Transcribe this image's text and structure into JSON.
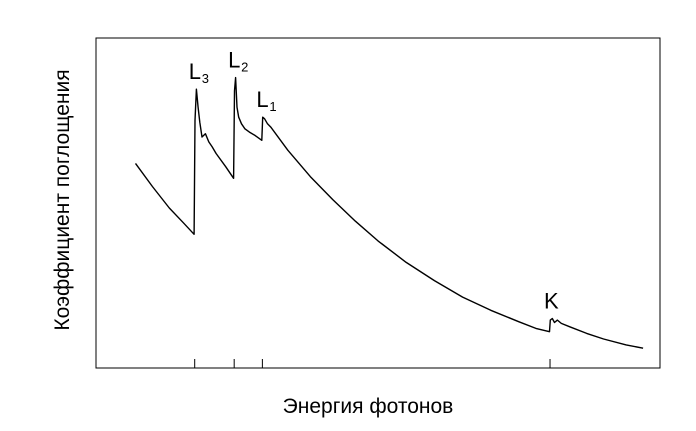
{
  "chart_data": {
    "type": "line",
    "xlabel": "Энергия фотонов",
    "ylabel": "Коэффициент поглощения",
    "xlim": [
      0,
      100
    ],
    "ylim": [
      0,
      100
    ],
    "grid": false,
    "x_ticks": [
      17.5,
      24.5,
      29.5,
      80.5
    ],
    "edges": [
      {
        "main": "L",
        "sub": "3",
        "x": 17.5
      },
      {
        "main": "L",
        "sub": "2",
        "x": 24.5
      },
      {
        "main": "L",
        "sub": "1",
        "x": 29.5
      },
      {
        "main": "K",
        "sub": "",
        "x": 80.5
      }
    ],
    "series": [
      {
        "values": [
          [
            7,
            62
          ],
          [
            10,
            55
          ],
          [
            13,
            48.5
          ],
          [
            15.5,
            44
          ],
          [
            17.4,
            40.5
          ],
          [
            17.55,
            75
          ],
          [
            17.8,
            84.5
          ],
          [
            18.1,
            79
          ],
          [
            18.4,
            74.5
          ],
          [
            18.8,
            70
          ],
          [
            19.4,
            71
          ],
          [
            20,
            68.5
          ],
          [
            20.6,
            67
          ],
          [
            21.3,
            65
          ],
          [
            23,
            61
          ],
          [
            24.4,
            57.5
          ],
          [
            24.55,
            84
          ],
          [
            24.75,
            88
          ],
          [
            25,
            79
          ],
          [
            25.3,
            76
          ],
          [
            25.8,
            74
          ],
          [
            26.4,
            72.5
          ],
          [
            27.2,
            71.5
          ],
          [
            28.2,
            70.5
          ],
          [
            29.4,
            69
          ],
          [
            29.55,
            76
          ],
          [
            29.9,
            75.5
          ],
          [
            30.4,
            74
          ],
          [
            31,
            73
          ],
          [
            34,
            66
          ],
          [
            38,
            58
          ],
          [
            42,
            51
          ],
          [
            46,
            44.5
          ],
          [
            50,
            38.5
          ],
          [
            55,
            32
          ],
          [
            60,
            26.5
          ],
          [
            65,
            21.5
          ],
          [
            70,
            17.5
          ],
          [
            75,
            14
          ],
          [
            78,
            12
          ],
          [
            80.4,
            11
          ],
          [
            80.55,
            14.5
          ],
          [
            80.9,
            15
          ],
          [
            81.3,
            13.8
          ],
          [
            81.8,
            14.5
          ],
          [
            82.5,
            13.5
          ],
          [
            84,
            12.5
          ],
          [
            87,
            10.5
          ],
          [
            90,
            8.8
          ],
          [
            94,
            7
          ],
          [
            97,
            6
          ]
        ]
      }
    ]
  }
}
